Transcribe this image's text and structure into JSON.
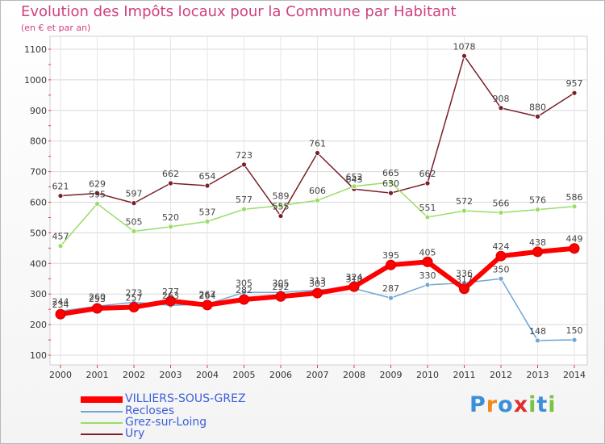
{
  "header": {
    "title": "Evolution des Impôts locaux pour la Commune par Habitant",
    "subtitle": "(en € et par an)"
  },
  "logo": {
    "text": "Proxiti"
  },
  "chart_data": {
    "type": "line",
    "title": "Evolution des Impôts locaux pour la Commune par Habitant",
    "subtitle": "(en € et par an)",
    "xlabel": "",
    "ylabel": "",
    "ylim": [
      100,
      1100
    ],
    "yticks": [
      100,
      200,
      300,
      400,
      500,
      600,
      700,
      800,
      900,
      1000,
      1100
    ],
    "grid": true,
    "legend": "bottom-left",
    "x": [
      "2000",
      "2001",
      "2002",
      "2003",
      "2004",
      "2005",
      "2006",
      "2007",
      "2008",
      "2009",
      "2010",
      "2011",
      "2012",
      "2013",
      "2014"
    ],
    "series": [
      {
        "name": "VILLIERS-SOUS-GREZ",
        "color": "#ff0000",
        "values": [
          234,
          253,
          257,
          277,
          264,
          282,
          292,
          303,
          324,
          395,
          405,
          317,
          424,
          438,
          449
        ]
      },
      {
        "name": "Recloses",
        "color": "#6ea6d6",
        "values": [
          244,
          260,
          273,
          263,
          267,
          305,
          305,
          313,
          318,
          287,
          330,
          336,
          350,
          148,
          150
        ]
      },
      {
        "name": "Grez-sur-Loing",
        "color": "#99dd66",
        "values": [
          457,
          595,
          505,
          520,
          537,
          577,
          589,
          606,
          652,
          665,
          551,
          572,
          566,
          576,
          586
        ]
      },
      {
        "name": "Ury",
        "color": "#7a1f2a",
        "values": [
          621,
          629,
          597,
          662,
          654,
          723,
          555,
          761,
          643,
          630,
          662,
          1078,
          908,
          880,
          957
        ]
      }
    ]
  }
}
